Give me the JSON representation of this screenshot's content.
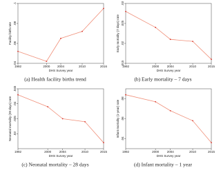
{
  "chart_data": [
    {
      "type": "line",
      "title": "(a)  Health facility births trend",
      "x_label": "DHS Survey year",
      "y_label": "Facility birth rate",
      "x": [
        1992,
        2000,
        2004,
        2010,
        2016
      ],
      "values": [
        0.052,
        0.042,
        0.065,
        0.072,
        0.095
      ],
      "color": "#f0907a",
      "marker_color": "#d9342b",
      "xlim": [
        1992,
        2016
      ],
      "xticks": [
        1992,
        2000,
        2004,
        2010,
        2016
      ],
      "ylim": [
        0.04,
        0.1
      ],
      "yticks": [
        {
          "value": 0.04,
          "label": ".04"
        },
        {
          "value": 0.06,
          "label": ".06"
        },
        {
          "value": 0.08,
          "label": ".08"
        },
        {
          "value": 0.1,
          "label": ".1"
        }
      ]
    },
    {
      "type": "line",
      "title": "(b) Early mortality – 7 days",
      "x_label": "DHS Survey year",
      "y_label": "Early mortality (7 days) rate",
      "x": [
        1992,
        2000,
        2004,
        2010,
        2015
      ],
      "values": [
        0.028,
        0.024,
        0.021,
        0.0205,
        0.016
      ],
      "color": "#f0907a",
      "marker_color": "#d9342b",
      "xlim": [
        1992,
        2015
      ],
      "xticks": [
        1992,
        2000,
        2004,
        2010,
        2015
      ],
      "ylim": [
        0.015,
        0.03
      ],
      "yticks": [
        {
          "value": 0.015,
          "label": ".015"
        },
        {
          "value": 0.02,
          "label": ".02"
        },
        {
          "value": 0.025,
          "label": ".025"
        },
        {
          "value": 0.03,
          "label": ".03"
        }
      ]
    },
    {
      "type": "line",
      "title": "(c) Neonatal mortality – 28 days",
      "x_label": "DHS Survey year",
      "y_label": "Neonatal mortality (28 days) rate",
      "x": [
        1992,
        2000,
        2004,
        2010,
        2015
      ],
      "values": [
        0.043,
        0.039,
        0.035,
        0.034,
        0.027
      ],
      "color": "#f0907a",
      "marker_color": "#d9342b",
      "xlim": [
        1992,
        2015
      ],
      "xticks": [
        1992,
        2000,
        2004,
        2010,
        2015
      ],
      "ylim": [
        0.025,
        0.045
      ],
      "yticks": [
        {
          "value": 0.03,
          "label": ".03"
        },
        {
          "value": 0.035,
          "label": ".035"
        },
        {
          "value": 0.04,
          "label": ".04"
        },
        {
          "value": 0.045,
          "label": ".045"
        }
      ]
    },
    {
      "type": "line",
      "title": "(d) Infant mortality – 1 year",
      "x_label": "DHS Survey year",
      "y_label": "Infant mortality (1-year) rate",
      "x": [
        1992,
        2000,
        2004,
        2010,
        2015
      ],
      "values": [
        0.084,
        0.077,
        0.068,
        0.058,
        0.036
      ],
      "color": "#f0907a",
      "marker_color": "#d9342b",
      "xlim": [
        1992,
        2015
      ],
      "xticks": [
        1992,
        2000,
        2004,
        2010,
        2015
      ],
      "ylim": [
        0.03,
        0.09
      ],
      "yticks": [
        {
          "value": 0.04,
          "label": ".04"
        },
        {
          "value": 0.06,
          "label": ".06"
        },
        {
          "value": 0.08,
          "label": ".08"
        }
      ]
    }
  ]
}
